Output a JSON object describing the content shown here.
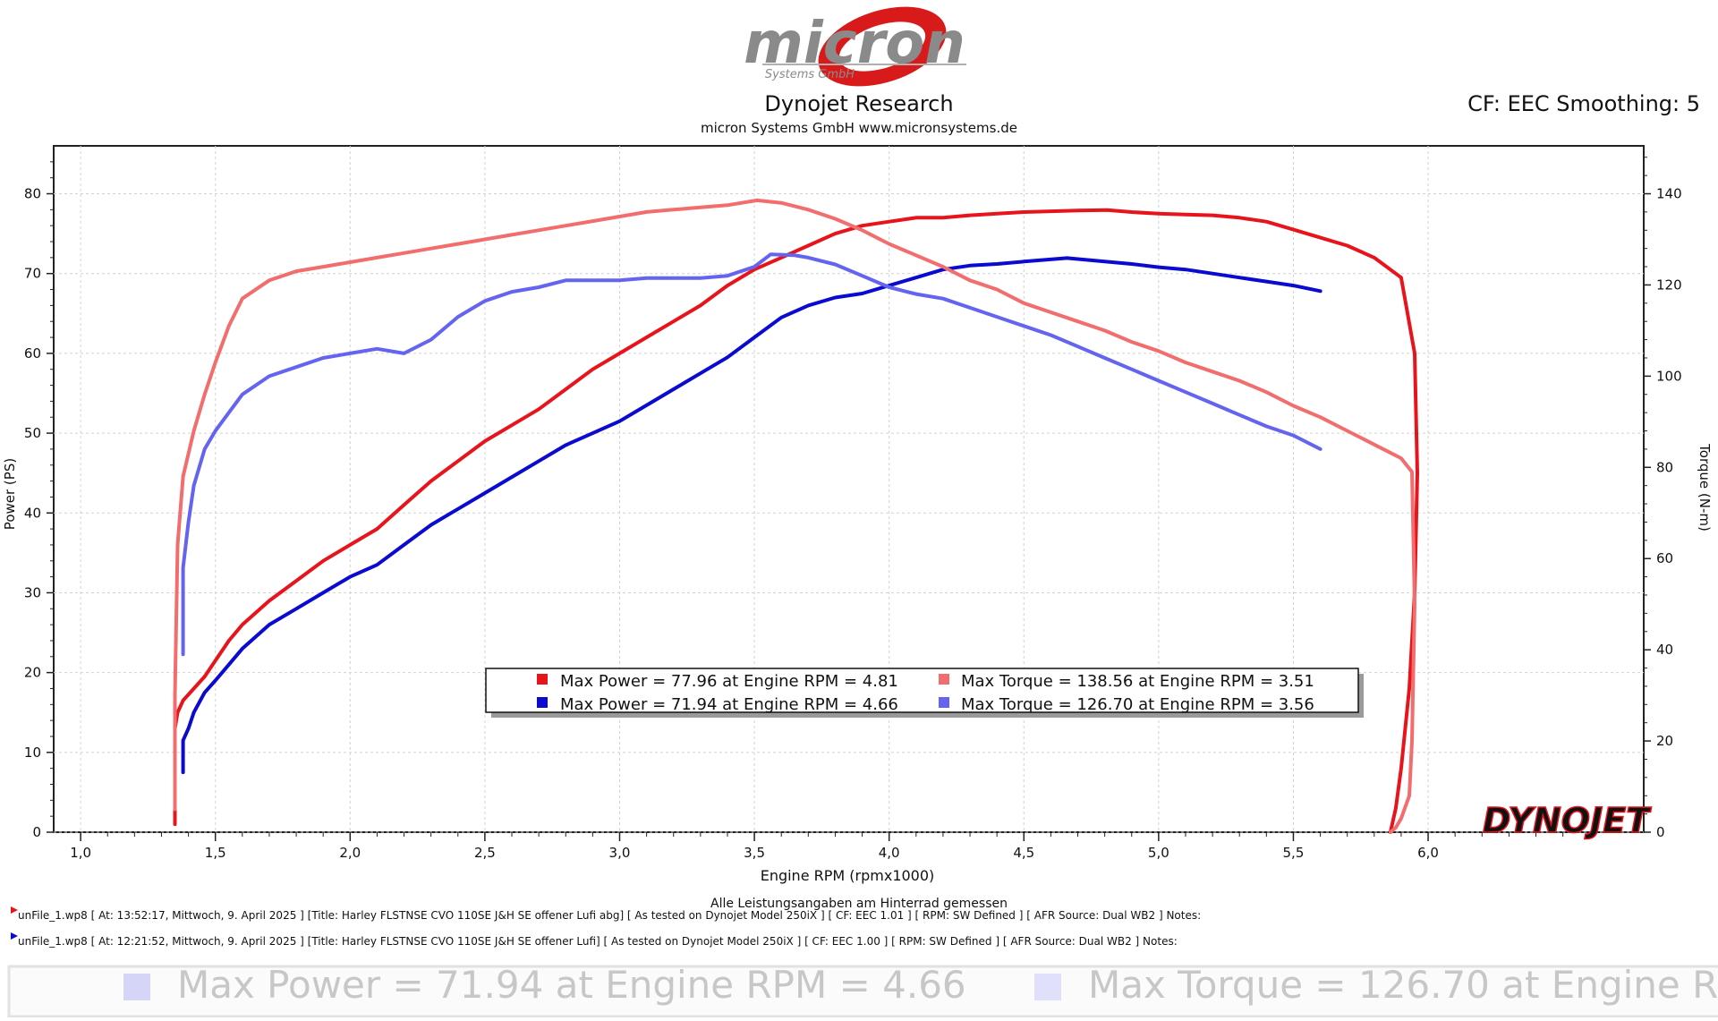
{
  "header": {
    "logo_word": "micron",
    "logo_sub": "Systems GmbH",
    "title": "Dynojet Research",
    "subtitle": "micron Systems GmbH  www.micronsystems.de",
    "correction": "CF: EEC Smoothing: 5"
  },
  "chart_data": {
    "type": "line",
    "title": "Dynojet Research",
    "xlabel": "Engine RPM (rpmx1000)",
    "ylabel_left": "Power (PS)",
    "ylabel_right": "Torque (N-m)",
    "xlim": [
      0.9,
      6.8
    ],
    "ylim_left": [
      0,
      86
    ],
    "ylim_right": [
      0,
      150.5
    ],
    "grid": true,
    "x_ticks": [
      "1,0",
      "1,5",
      "2,0",
      "2,5",
      "3,0",
      "3,5",
      "4,0",
      "4,5",
      "5,0",
      "5,5",
      "6,0"
    ],
    "y_ticks_left": [
      "0",
      "10",
      "20",
      "30",
      "40",
      "50",
      "60",
      "70",
      "80"
    ],
    "y_ticks_right": [
      "0",
      "20",
      "40",
      "60",
      "80",
      "100",
      "120",
      "140"
    ],
    "footnote": "Alle Leistungsangaben am Hinterrad gemessen",
    "series": [
      {
        "name": "Max Power = 77.96 at Engine RPM = 4.81",
        "axis": "left",
        "color": "#e8141b",
        "x": [
          1.35,
          1.35,
          1.36,
          1.38,
          1.42,
          1.46,
          1.5,
          1.55,
          1.6,
          1.7,
          1.8,
          1.9,
          2.0,
          2.1,
          2.2,
          2.3,
          2.4,
          2.5,
          2.6,
          2.7,
          2.8,
          2.9,
          3.0,
          3.1,
          3.2,
          3.3,
          3.4,
          3.5,
          3.6,
          3.7,
          3.8,
          3.9,
          4.0,
          4.1,
          4.2,
          4.3,
          4.4,
          4.5,
          4.6,
          4.7,
          4.81,
          4.9,
          5.0,
          5.1,
          5.2,
          5.3,
          5.4,
          5.5,
          5.6,
          5.7,
          5.8,
          5.9,
          5.95,
          5.96,
          5.95,
          5.93,
          5.9,
          5.88,
          5.86
        ],
        "y": [
          1,
          13,
          15,
          16.5,
          18,
          19.5,
          21.5,
          24,
          26,
          29,
          31.5,
          34,
          36,
          38,
          41,
          44,
          46.5,
          49,
          51,
          53,
          55.5,
          58,
          60,
          62,
          64,
          66,
          68.5,
          70.5,
          72,
          73.5,
          75,
          76,
          76.5,
          77,
          77,
          77.3,
          77.5,
          77.7,
          77.8,
          77.9,
          77.96,
          77.7,
          77.5,
          77.4,
          77.3,
          77,
          76.5,
          75.5,
          74.5,
          73.5,
          72,
          69.5,
          60,
          45,
          30,
          18,
          8,
          3,
          0
        ]
      },
      {
        "name": "Max Power = 71.94 at Engine RPM = 4.66",
        "axis": "left",
        "color": "#0a0ad0",
        "x": [
          1.38,
          1.38,
          1.4,
          1.42,
          1.46,
          1.5,
          1.55,
          1.6,
          1.7,
          1.8,
          1.9,
          2.0,
          2.1,
          2.2,
          2.3,
          2.4,
          2.5,
          2.6,
          2.7,
          2.8,
          2.9,
          3.0,
          3.1,
          3.2,
          3.3,
          3.4,
          3.5,
          3.6,
          3.7,
          3.8,
          3.9,
          4.0,
          4.1,
          4.2,
          4.3,
          4.4,
          4.5,
          4.66,
          4.8,
          4.9,
          5.0,
          5.1,
          5.2,
          5.3,
          5.4,
          5.5,
          5.6
        ],
        "y": [
          7.5,
          11.5,
          13,
          15,
          17.5,
          19,
          21,
          23,
          26,
          28,
          30,
          32,
          33.5,
          36,
          38.5,
          40.5,
          42.5,
          44.5,
          46.5,
          48.5,
          50,
          51.5,
          53.5,
          55.5,
          57.5,
          59.5,
          62,
          64.5,
          66,
          67,
          67.5,
          68.5,
          69.5,
          70.5,
          71,
          71.2,
          71.5,
          71.94,
          71.5,
          71.2,
          70.8,
          70.5,
          70,
          69.5,
          69,
          68.5,
          67.8
        ]
      },
      {
        "name": "Max Torque = 138.56 at Engine RPM = 3.51",
        "axis": "right",
        "color": "#f26d6d",
        "x": [
          1.35,
          1.35,
          1.36,
          1.38,
          1.42,
          1.46,
          1.5,
          1.55,
          1.6,
          1.7,
          1.8,
          1.9,
          2.0,
          2.1,
          2.2,
          2.3,
          2.4,
          2.5,
          2.6,
          2.7,
          2.8,
          2.9,
          3.0,
          3.1,
          3.2,
          3.3,
          3.4,
          3.51,
          3.6,
          3.7,
          3.8,
          3.9,
          4.0,
          4.1,
          4.2,
          4.3,
          4.4,
          4.5,
          4.6,
          4.7,
          4.8,
          4.9,
          5.0,
          5.1,
          5.2,
          5.3,
          5.4,
          5.5,
          5.6,
          5.7,
          5.8,
          5.9,
          5.94,
          5.95,
          5.94,
          5.93,
          5.9,
          5.88,
          5.86
        ],
        "y": [
          5,
          30,
          63,
          78,
          88,
          96,
          103,
          111,
          117,
          121,
          123,
          124,
          125,
          126,
          127,
          128,
          129,
          130,
          131,
          132,
          133,
          134,
          135,
          136,
          136.5,
          137,
          137.5,
          138.56,
          138,
          136.5,
          134.5,
          132,
          129,
          126.5,
          124,
          121,
          119,
          116,
          114,
          112,
          110,
          107.5,
          105.5,
          103,
          101,
          99,
          96.5,
          93.5,
          91,
          88,
          85,
          82,
          79,
          50,
          20,
          8,
          3,
          1,
          0
        ]
      },
      {
        "name": "Max Torque = 126.70 at Engine RPM = 3.56",
        "axis": "right",
        "color": "#6464f0",
        "x": [
          1.38,
          1.38,
          1.4,
          1.42,
          1.46,
          1.5,
          1.55,
          1.6,
          1.7,
          1.8,
          1.9,
          2.0,
          2.1,
          2.2,
          2.3,
          2.4,
          2.5,
          2.6,
          2.7,
          2.8,
          2.9,
          3.0,
          3.1,
          3.2,
          3.3,
          3.4,
          3.5,
          3.56,
          3.65,
          3.7,
          3.8,
          3.9,
          4.0,
          4.1,
          4.2,
          4.3,
          4.4,
          4.5,
          4.6,
          4.7,
          4.8,
          4.9,
          5.0,
          5.1,
          5.2,
          5.3,
          5.4,
          5.5,
          5.6
        ],
        "y": [
          39,
          58,
          68,
          76,
          84,
          88,
          92,
          96,
          100,
          102,
          104,
          105,
          106,
          105,
          108,
          113,
          116.5,
          118.5,
          119.5,
          121,
          121,
          121,
          121.5,
          121.5,
          121.5,
          122,
          124,
          126.7,
          126.5,
          126,
          124.5,
          122,
          119.5,
          118,
          117,
          115,
          113,
          111,
          109,
          106.5,
          104,
          101.5,
          99,
          96.5,
          94,
          91.5,
          89,
          87,
          84
        ]
      }
    ]
  },
  "legend": {
    "run1_power": "Max Power = 77.96 at Engine RPM = 4.81",
    "run1_torque": "Max Torque = 138.56 at Engine RPM = 3.51",
    "run2_power": "Max Power = 71.94 at Engine RPM = 4.66",
    "run2_torque": "Max Torque = 126.70 at Engine RPM = 3.56"
  },
  "watermark": "DYNOJET",
  "footer": {
    "run1_info": "unFile_1.wp8 [ At:  13:52:17, Mittwoch, 9. April 2025 ] [Title:  Harley  FLSTNSE  CVO  110SE  J&H  SE  offener  Lufi  abg]   [ As  tested  on  Dynojet  Model  250iX  ] [ CF:  EEC  1.01 ] [ RPM:  SW  Defined  ] [ AFR  Source:  Dual  WB2 ] Notes:",
    "run2_info": "unFile_1.wp8 [ At:  12:21:52, Mittwoch, 9. April 2025 ] [Title:  Harley  FLSTNSE  CVO  110SE  J&H  SE  offener  Lufi]   [ As  tested  on  Dynojet  Model  250iX  ] [ CF:  EEC  1.00 ] [ RPM:  SW  Defined  ] [ AFR  Source:  Dual  WB2 ] Notes:",
    "zoom_power": "Max Power = 71.94 at Engine RPM = 4.66",
    "zoom_torque": "Max Torque = 126.70 at Engine R"
  }
}
